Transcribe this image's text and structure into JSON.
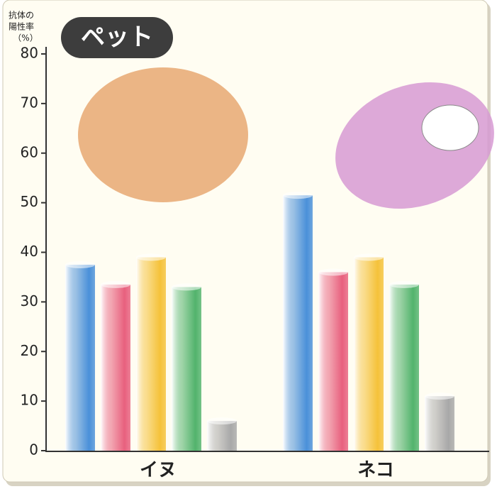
{
  "chart_data": {
    "type": "bar",
    "title": "ペット",
    "y_label": [
      "抗体の",
      "陽性率",
      "（%）"
    ],
    "categories": [
      "イヌ",
      "ネコ"
    ],
    "series": [
      {
        "color": "#4a90d9",
        "values": [
          37.5,
          51.5
        ]
      },
      {
        "color": "#e8607e",
        "values": [
          33.5,
          36
        ]
      },
      {
        "color": "#f5c23a",
        "values": [
          39,
          39
        ]
      },
      {
        "color": "#52b36c",
        "values": [
          33,
          33.5
        ]
      },
      {
        "color": "#a8a8a8",
        "values": [
          6,
          11
        ]
      }
    ],
    "ylim": [
      0,
      80
    ],
    "yticks": [
      0,
      10,
      20,
      30,
      40,
      50,
      60,
      70,
      80
    ]
  }
}
